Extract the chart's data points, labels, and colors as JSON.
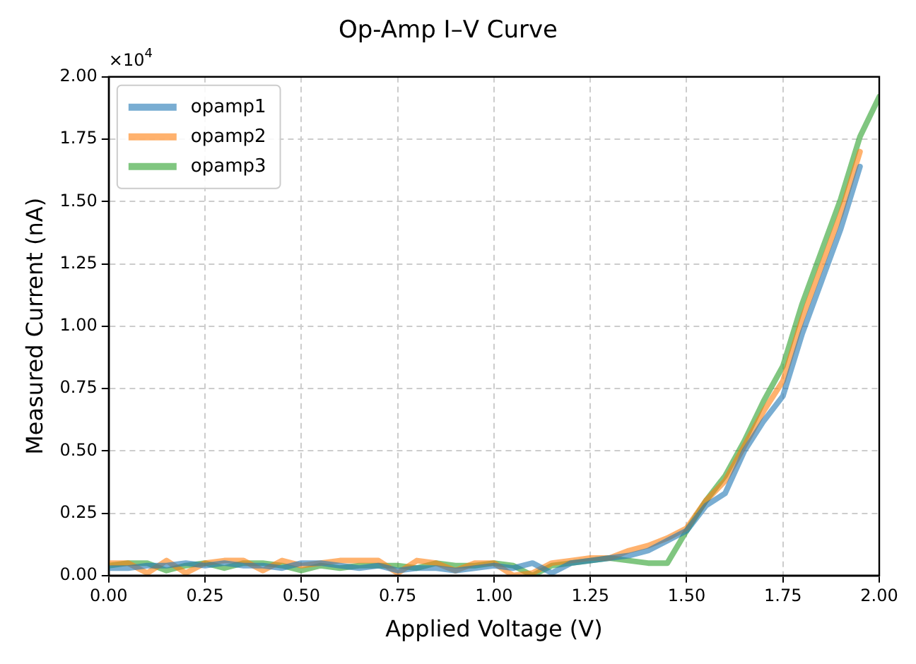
{
  "chart_data": {
    "type": "line",
    "title": "Op-Amp I–V Curve",
    "xlabel": "Applied Voltage (V)",
    "ylabel": "Measured Current (nA)",
    "annotations": [
      "×10$^{4}$"
    ],
    "x": [
      0,
      0.05,
      0.1,
      0.15,
      0.2,
      0.25,
      0.3,
      0.35,
      0.4,
      0.45,
      0.5,
      0.55,
      0.6,
      0.65,
      0.7,
      0.75,
      0.8,
      0.85,
      0.9,
      0.95,
      1.0,
      1.05,
      1.1,
      1.15,
      1.2,
      1.25,
      1.3,
      1.35,
      1.4,
      1.45,
      1.5,
      1.55,
      1.6,
      1.65,
      1.7,
      1.75,
      1.8,
      1.85,
      1.9,
      1.95,
      2.0
    ],
    "series": [
      {
        "name": "opamp1",
        "color": "#1f77b4",
        "values": [
          0.03,
          0.03,
          0.04,
          0.04,
          0.05,
          0.04,
          0.05,
          0.04,
          0.04,
          0.03,
          0.05,
          0.05,
          0.04,
          0.03,
          0.04,
          0.02,
          0.03,
          0.03,
          0.02,
          0.03,
          0.04,
          0.03,
          0.05,
          0.01,
          0.05,
          0.06,
          0.07,
          0.08,
          0.1,
          0.14,
          0.18,
          0.28,
          0.33,
          0.5,
          0.62,
          0.72,
          0.97,
          1.18,
          1.39,
          1.64,
          null
        ]
      },
      {
        "name": "opamp2",
        "color": "#ff7f0e",
        "values": [
          0.05,
          0.05,
          0.01,
          0.06,
          0.01,
          0.05,
          0.06,
          0.06,
          0.02,
          0.06,
          0.04,
          0.05,
          0.06,
          0.06,
          0.06,
          0.01,
          0.06,
          0.05,
          0.02,
          0.05,
          0.05,
          0.0,
          0.01,
          0.05,
          0.06,
          0.07,
          0.07,
          0.1,
          0.12,
          0.15,
          0.19,
          0.3,
          0.38,
          0.52,
          0.66,
          0.78,
          1.03,
          1.24,
          1.45,
          1.7,
          null
        ]
      },
      {
        "name": "opamp3",
        "color": "#2ca02c",
        "values": [
          0.04,
          0.05,
          0.05,
          0.02,
          0.04,
          0.05,
          0.03,
          0.05,
          0.05,
          0.04,
          0.02,
          0.04,
          0.03,
          0.04,
          0.04,
          0.04,
          0.03,
          0.05,
          0.04,
          0.04,
          0.05,
          0.04,
          0.0,
          0.04,
          0.05,
          0.06,
          0.07,
          0.06,
          0.05,
          0.05,
          0.18,
          0.3,
          0.4,
          0.54,
          0.7,
          0.84,
          1.09,
          1.3,
          1.51,
          1.76,
          1.92
        ]
      }
    ],
    "xlim": [
      0,
      2
    ],
    "xticks": [
      {
        "value": 0,
        "label": "0.00"
      },
      {
        "value": 0.25,
        "label": "0.25"
      },
      {
        "value": 0.5,
        "label": "0.50"
      },
      {
        "value": 0.75,
        "label": "0.75"
      },
      {
        "value": 1,
        "label": "1.00"
      },
      {
        "value": 1.25,
        "label": "1.25"
      },
      {
        "value": 1.5,
        "label": "1.50"
      },
      {
        "value": 1.75,
        "label": "1.75"
      },
      {
        "value": 2,
        "label": "2.00"
      }
    ],
    "ylim": [
      0,
      2
    ],
    "yticks": [
      {
        "value": 0,
        "label": "0.00"
      },
      {
        "value": 0.25,
        "label": "0.25"
      },
      {
        "value": 0.5,
        "label": "0.50"
      },
      {
        "value": 0.75,
        "label": "0.75"
      },
      {
        "value": 1,
        "label": "1.00"
      },
      {
        "value": 1.25,
        "label": "1.25"
      },
      {
        "value": 1.5,
        "label": "1.50"
      },
      {
        "value": 1.75,
        "label": "1.75"
      },
      {
        "value": 2,
        "label": "2.00"
      }
    ],
    "grid": true,
    "legend": "top left",
    "marker": "none",
    "line_style": "solid"
  }
}
